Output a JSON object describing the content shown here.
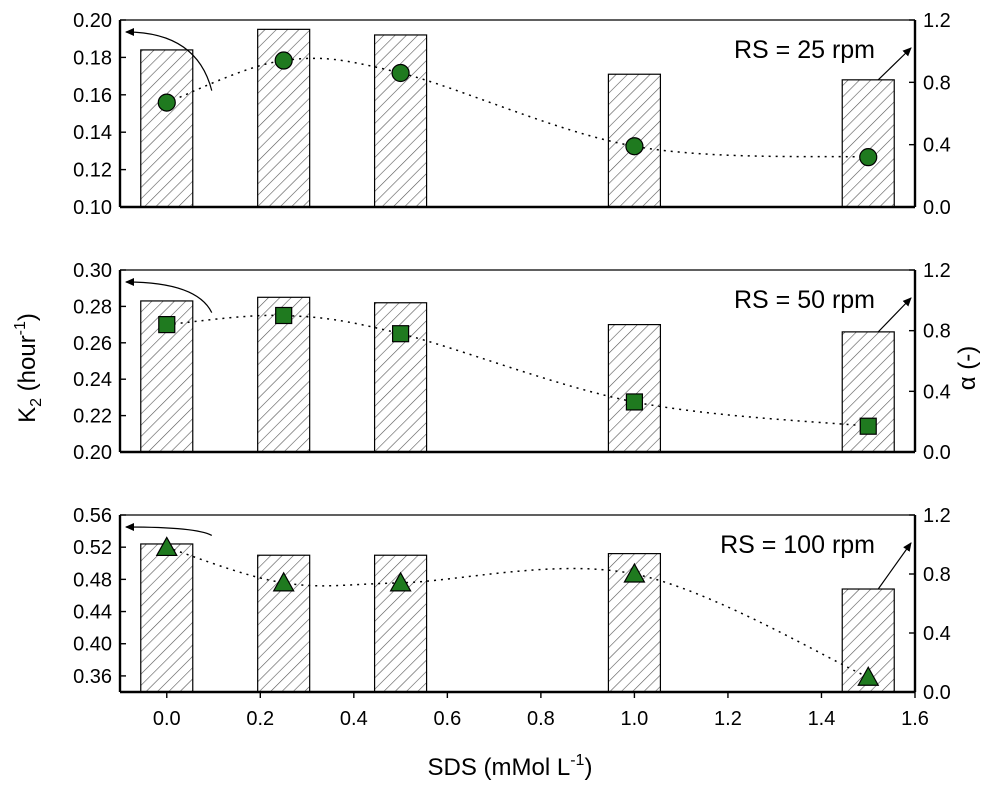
{
  "colors": {
    "marker_fill": "#1f7a1f",
    "bar_hatch": "#555555",
    "axis": "#000000"
  },
  "figure": {
    "left_ylabel": "K",
    "left_ylabel_sub": "2",
    "left_ylabel_rest": " (hour",
    "left_ylabel_sup": "-1",
    "left_ylabel_close": ")",
    "right_ylabel": "α (-)",
    "xlabel": "SDS (mMol L",
    "xlabel_sup": "-1",
    "xlabel_close": ")"
  },
  "chart_data": [
    {
      "type": "bar",
      "label": "RS = 25 rpm",
      "marker": "circle",
      "x": [
        0.0,
        0.25,
        0.5,
        1.0,
        1.5
      ],
      "bar_values": [
        0.184,
        0.195,
        0.192,
        0.171,
        0.168
      ],
      "line_values": [
        0.67,
        0.94,
        0.86,
        0.39,
        0.32
      ],
      "xlim": [
        -0.1,
        1.6
      ],
      "ylim_left": [
        0.1,
        0.2
      ],
      "ylim_right": [
        0.0,
        1.2
      ],
      "left_ticks": [
        "0.10",
        "0.12",
        "0.14",
        "0.16",
        "0.18",
        "0.20"
      ],
      "right_ticks": [
        "0.0",
        "0.4",
        "0.8",
        "1.2"
      ],
      "left_arrow_to": "top-left",
      "right_arrow_to": "top-right"
    },
    {
      "type": "bar",
      "label": "RS = 50 rpm",
      "marker": "square",
      "x": [
        0.0,
        0.25,
        0.5,
        1.0,
        1.5
      ],
      "bar_values": [
        0.283,
        0.285,
        0.282,
        0.27,
        0.266
      ],
      "line_values": [
        0.84,
        0.9,
        0.78,
        0.33,
        0.17
      ],
      "xlim": [
        -0.1,
        1.6
      ],
      "ylim_left": [
        0.2,
        0.3
      ],
      "ylim_right": [
        0.0,
        1.2
      ],
      "left_ticks": [
        "0.20",
        "0.22",
        "0.24",
        "0.26",
        "0.28",
        "0.30"
      ],
      "right_ticks": [
        "0.0",
        "0.4",
        "0.8",
        "1.2"
      ],
      "left_arrow_to": "top-left",
      "right_arrow_to": "top-right"
    },
    {
      "type": "bar",
      "label": "RS = 100 rpm",
      "marker": "triangle",
      "x": [
        0.0,
        0.25,
        0.5,
        1.0,
        1.5
      ],
      "bar_values": [
        0.524,
        0.51,
        0.51,
        0.512,
        0.468
      ],
      "line_values": [
        0.98,
        0.74,
        0.74,
        0.8,
        0.1
      ],
      "xlim": [
        -0.1,
        1.6
      ],
      "ylim_left": [
        0.34,
        0.56
      ],
      "ylim_right": [
        0.0,
        1.2
      ],
      "left_ticks": [
        "0.36",
        "0.40",
        "0.44",
        "0.48",
        "0.52",
        "0.56"
      ],
      "right_ticks": [
        "0.0",
        "0.4",
        "0.8",
        "1.2"
      ],
      "left_arrow_to": "top-left",
      "right_arrow_to": "top-right",
      "x_ticks": [
        "0.0",
        "0.2",
        "0.4",
        "0.6",
        "0.8",
        "1.0",
        "1.2",
        "1.4",
        "1.6"
      ]
    }
  ]
}
